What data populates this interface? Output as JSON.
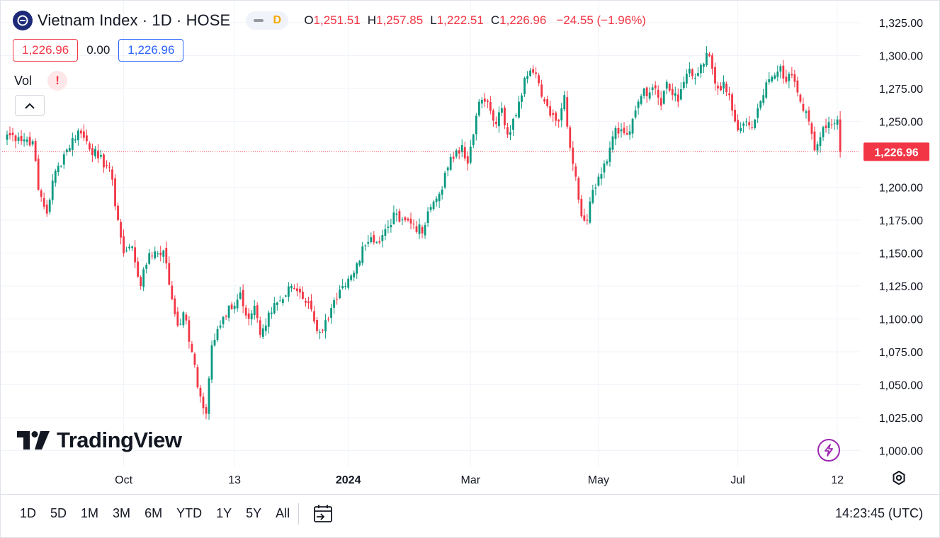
{
  "header": {
    "symbol_title": "Vietnam Index · 1D · HOSE",
    "badge_letter": "D",
    "ohlc": {
      "o_label": "O",
      "o_value": "1,251.51",
      "h_label": "H",
      "h_value": "1,257.85",
      "l_label": "L",
      "l_value": "1,222.51",
      "c_label": "C",
      "c_value": "1,226.96",
      "change": "−24.55 (−1.96%)"
    },
    "sell_price": "1,226.96",
    "spread": "0.00",
    "buy_price": "1,226.96"
  },
  "volume": {
    "label": "Vol",
    "warning": "!"
  },
  "branding": {
    "logo_text": "TradingView"
  },
  "price_label": "1,226.96",
  "bottom_toolbar": {
    "ranges": [
      "1D",
      "5D",
      "1M",
      "3M",
      "6M",
      "YTD",
      "1Y",
      "5Y",
      "All"
    ],
    "clock": "14:23:45 (UTC)"
  },
  "colors": {
    "up": "#089981",
    "down": "#f23645",
    "price_line": "#f23645",
    "grid": "#f0f3fa"
  },
  "chart_data": {
    "type": "candlestick",
    "title": "Vietnam Index · 1D · HOSE",
    "y_ticks": [
      1325,
      1300,
      1275,
      1250,
      1200,
      1175,
      1150,
      1125,
      1100,
      1075,
      1050,
      1025,
      1000
    ],
    "y_tick_labels": [
      "1,325.00",
      "1,300.00",
      "1,275.00",
      "1,250.00",
      "1,200.00",
      "1,175.00",
      "1,150.00",
      "1,125.00",
      "1,100.00",
      "1,075.00",
      "1,050.00",
      "1,025.00",
      "1,000.00"
    ],
    "ylim": [
      992,
      1334
    ],
    "x_labels": [
      {
        "label": "Oct",
        "index": 41,
        "bold": false
      },
      {
        "label": "13",
        "index": 80,
        "bold": false
      },
      {
        "label": "2024",
        "index": 120,
        "bold": true
      },
      {
        "label": "Mar",
        "index": 163,
        "bold": false
      },
      {
        "label": "May",
        "index": 208,
        "bold": false
      },
      {
        "label": "Jul",
        "index": 257,
        "bold": false
      },
      {
        "label": "12",
        "index": 292,
        "bold": false
      }
    ],
    "last_close": 1226.96,
    "grid": true,
    "anchors": [
      [
        0,
        1240
      ],
      [
        4,
        1238
      ],
      [
        9,
        1235
      ],
      [
        11,
        1198
      ],
      [
        14,
        1180
      ],
      [
        16,
        1205
      ],
      [
        20,
        1225
      ],
      [
        25,
        1243
      ],
      [
        28,
        1235
      ],
      [
        32,
        1222
      ],
      [
        36,
        1215
      ],
      [
        39,
        1175
      ],
      [
        41,
        1150
      ],
      [
        44,
        1155
      ],
      [
        47,
        1125
      ],
      [
        50,
        1150
      ],
      [
        55,
        1152
      ],
      [
        58,
        1115
      ],
      [
        60,
        1095
      ],
      [
        62,
        1105
      ],
      [
        65,
        1075
      ],
      [
        67,
        1048
      ],
      [
        70,
        1028
      ],
      [
        72,
        1080
      ],
      [
        75,
        1095
      ],
      [
        78,
        1110
      ],
      [
        80,
        1110
      ],
      [
        82,
        1120
      ],
      [
        85,
        1100
      ],
      [
        87,
        1110
      ],
      [
        89,
        1088
      ],
      [
        91,
        1095
      ],
      [
        94,
        1112
      ],
      [
        97,
        1115
      ],
      [
        100,
        1125
      ],
      [
        103,
        1120
      ],
      [
        106,
        1112
      ],
      [
        108,
        1098
      ],
      [
        110,
        1090
      ],
      [
        113,
        1100
      ],
      [
        116,
        1115
      ],
      [
        119,
        1125
      ],
      [
        122,
        1135
      ],
      [
        125,
        1155
      ],
      [
        128,
        1162
      ],
      [
        131,
        1158
      ],
      [
        134,
        1170
      ],
      [
        137,
        1180
      ],
      [
        140,
        1175
      ],
      [
        143,
        1172
      ],
      [
        146,
        1165
      ],
      [
        149,
        1185
      ],
      [
        152,
        1195
      ],
      [
        155,
        1215
      ],
      [
        158,
        1228
      ],
      [
        160,
        1232
      ],
      [
        162,
        1218
      ],
      [
        164,
        1240
      ],
      [
        166,
        1265
      ],
      [
        168,
        1265
      ],
      [
        170,
        1258
      ],
      [
        172,
        1248
      ],
      [
        174,
        1260
      ],
      [
        176,
        1240
      ],
      [
        178,
        1252
      ],
      [
        180,
        1265
      ],
      [
        182,
        1283
      ],
      [
        185,
        1287
      ],
      [
        187,
        1279
      ],
      [
        189,
        1265
      ],
      [
        192,
        1255
      ],
      [
        194,
        1250
      ],
      [
        196,
        1270
      ],
      [
        198,
        1230
      ],
      [
        200,
        1208
      ],
      [
        202,
        1178
      ],
      [
        204,
        1175
      ],
      [
        206,
        1198
      ],
      [
        208,
        1208
      ],
      [
        210,
        1218
      ],
      [
        212,
        1230
      ],
      [
        214,
        1245
      ],
      [
        216,
        1244
      ],
      [
        218,
        1240
      ],
      [
        220,
        1252
      ],
      [
        222,
        1265
      ],
      [
        224,
        1275
      ],
      [
        226,
        1272
      ],
      [
        228,
        1275
      ],
      [
        230,
        1262
      ],
      [
        232,
        1280
      ],
      [
        234,
        1270
      ],
      [
        236,
        1265
      ],
      [
        238,
        1280
      ],
      [
        240,
        1290
      ],
      [
        242,
        1283
      ],
      [
        244,
        1293
      ],
      [
        246,
        1302
      ],
      [
        248,
        1290
      ],
      [
        250,
        1275
      ],
      [
        252,
        1280
      ],
      [
        254,
        1270
      ],
      [
        256,
        1250
      ],
      [
        258,
        1245
      ],
      [
        260,
        1250
      ],
      [
        262,
        1245
      ],
      [
        264,
        1260
      ],
      [
        266,
        1270
      ],
      [
        268,
        1282
      ],
      [
        270,
        1285
      ],
      [
        272,
        1292
      ],
      [
        274,
        1280
      ],
      [
        276,
        1285
      ],
      [
        278,
        1272
      ],
      [
        280,
        1258
      ],
      [
        282,
        1250
      ],
      [
        284,
        1228
      ],
      [
        286,
        1238
      ],
      [
        288,
        1245
      ],
      [
        290,
        1247
      ],
      [
        292,
        1251.5
      ],
      [
        293,
        1226.96
      ]
    ]
  }
}
